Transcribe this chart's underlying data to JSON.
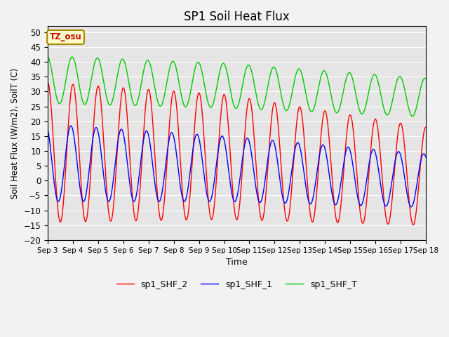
{
  "title": "SP1 Soil Heat Flux",
  "xlabel": "Time",
  "ylabel": "Soil Heat Flux (W/m2), SoilT (C)",
  "ylim": [
    -20,
    52
  ],
  "background_color": "#e5e5e5",
  "grid_color": "#ffffff",
  "series": {
    "sp1_SHF_2": {
      "color": "#ff0000",
      "label": "sp1_SHF_2"
    },
    "sp1_SHF_1": {
      "color": "#0000ff",
      "label": "sp1_SHF_1"
    },
    "sp1_SHF_T": {
      "color": "#00cc00",
      "label": "sp1_SHF_T"
    }
  },
  "tz_label": "TZ_osu",
  "tz_bg": "#ffffcc",
  "tz_border": "#aa8800",
  "tz_text_color": "#cc0000",
  "legend_fontsize": 9,
  "title_fontsize": 12
}
